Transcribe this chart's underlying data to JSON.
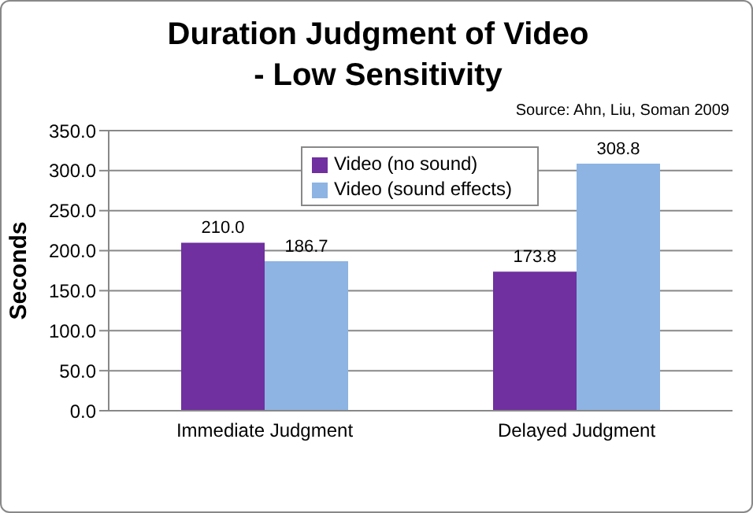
{
  "chart_data": {
    "type": "bar",
    "title": "Duration Judgment of Video\n- Low Sensitivity",
    "ylabel": "Seconds",
    "annotations": [
      "Source: Ahn, Liu, Soman 2009"
    ],
    "categories": [
      "Immediate Judgment",
      "Delayed Judgment"
    ],
    "series": [
      {
        "name": "Video (no sound)",
        "color": "#7030a0",
        "values": [
          210.0,
          173.8
        ],
        "value_labels": [
          "210.0",
          "173.8"
        ]
      },
      {
        "name": "Video (sound effects)",
        "color": "#8db4e2",
        "values": [
          186.7,
          308.8
        ],
        "value_labels": [
          "186.7",
          "308.8"
        ]
      }
    ],
    "ylim": [
      0,
      350
    ],
    "yticks": [
      {
        "value": 0,
        "label": "0.0"
      },
      {
        "value": 50,
        "label": "50.0"
      },
      {
        "value": 100,
        "label": "100.0"
      },
      {
        "value": 150,
        "label": "150.0"
      },
      {
        "value": 200,
        "label": "200.0"
      },
      {
        "value": 250,
        "label": "250.0"
      },
      {
        "value": 300,
        "label": "300.0"
      },
      {
        "value": 350,
        "label": "350.0"
      }
    ],
    "grid": "y",
    "legend": "top"
  }
}
